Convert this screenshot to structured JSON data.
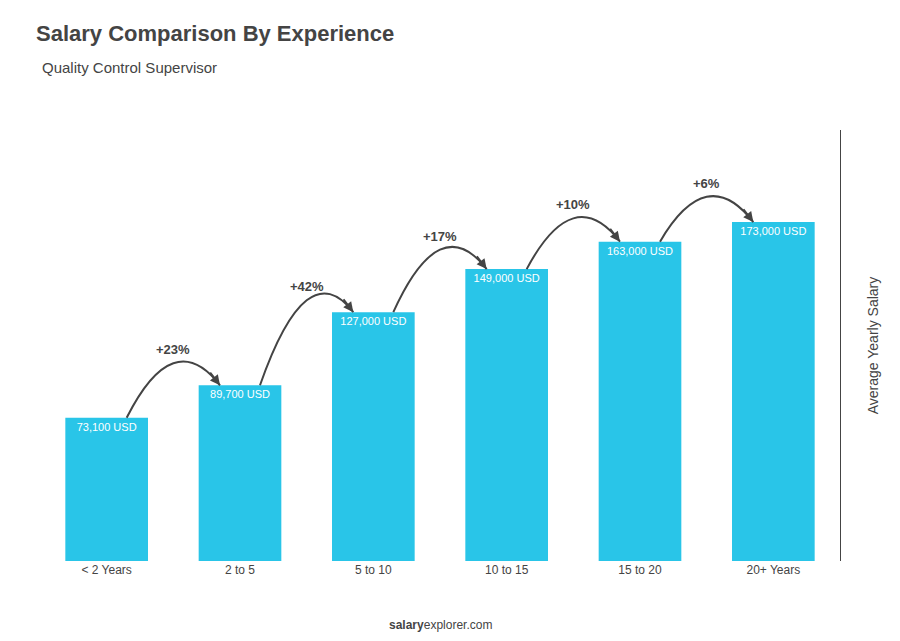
{
  "chart_data": {
    "type": "bar",
    "title": "Salary Comparison By Experience",
    "subtitle": "Quality Control Supervisor",
    "categories": [
      "< 2 Years",
      "2 to 5",
      "5 to 10",
      "10 to 15",
      "15 to 20",
      "20+ Years"
    ],
    "values": [
      73100,
      89700,
      127000,
      149000,
      163000,
      173000
    ],
    "value_labels": [
      "73,100 USD",
      "89,700 USD",
      "127,000 USD",
      "149,000 USD",
      "163,000 USD",
      "173,000 USD"
    ],
    "data_labels": true,
    "color": "#29c5e8",
    "ylim": [
      0,
      220000
    ],
    "ylabel": "Average Yearly Salary",
    "annotations": [
      "+23%",
      "+42%",
      "+17%",
      "+10%",
      "+6%"
    ],
    "footer": [
      "salary",
      "explorer.com"
    ],
    "tick_labels": "x",
    "grid": false
  }
}
